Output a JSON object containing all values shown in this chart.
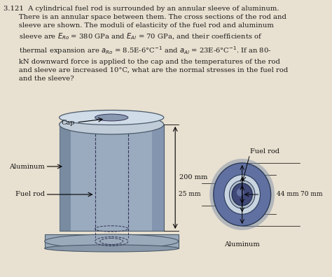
{
  "bg_color": "#e8e0d0",
  "title_text": "3.121 A cylindrical fuel rod is surrounded by an annular sleeve of aluminum.\n      There is an annular space between them. The cross sections of the rod and\n      sleeve are shown. The moduli of elasticity of the fuel rod and aluminum\n      sleeve are Eᴯₒ = 380 GPa and Eₐₗ = 70 GPa, and their coefficients of\n      thermal expansion are aᴯₒ = 8.5E-6°C⁻¹ and aₐₗ = 23E-6°C⁻¹. If an 80-\n      kN downward force is applied to the cap and the temperatures of the rod\n      and sleeve are increased 10°C, what are the normal stresses in the fuel rod\n      and the sleeve?",
  "label_cap": "Cap",
  "label_aluminum": "Aluminum",
  "label_fuel_rod_left": "Fuel rod",
  "label_200mm": "200 mm",
  "label_25mm": "25 mm",
  "label_44mm": "44 mm",
  "label_70mm": "70 mm",
  "label_fuel_rod_right": "Fuel rod",
  "label_aluminum_right": "Aluminum"
}
